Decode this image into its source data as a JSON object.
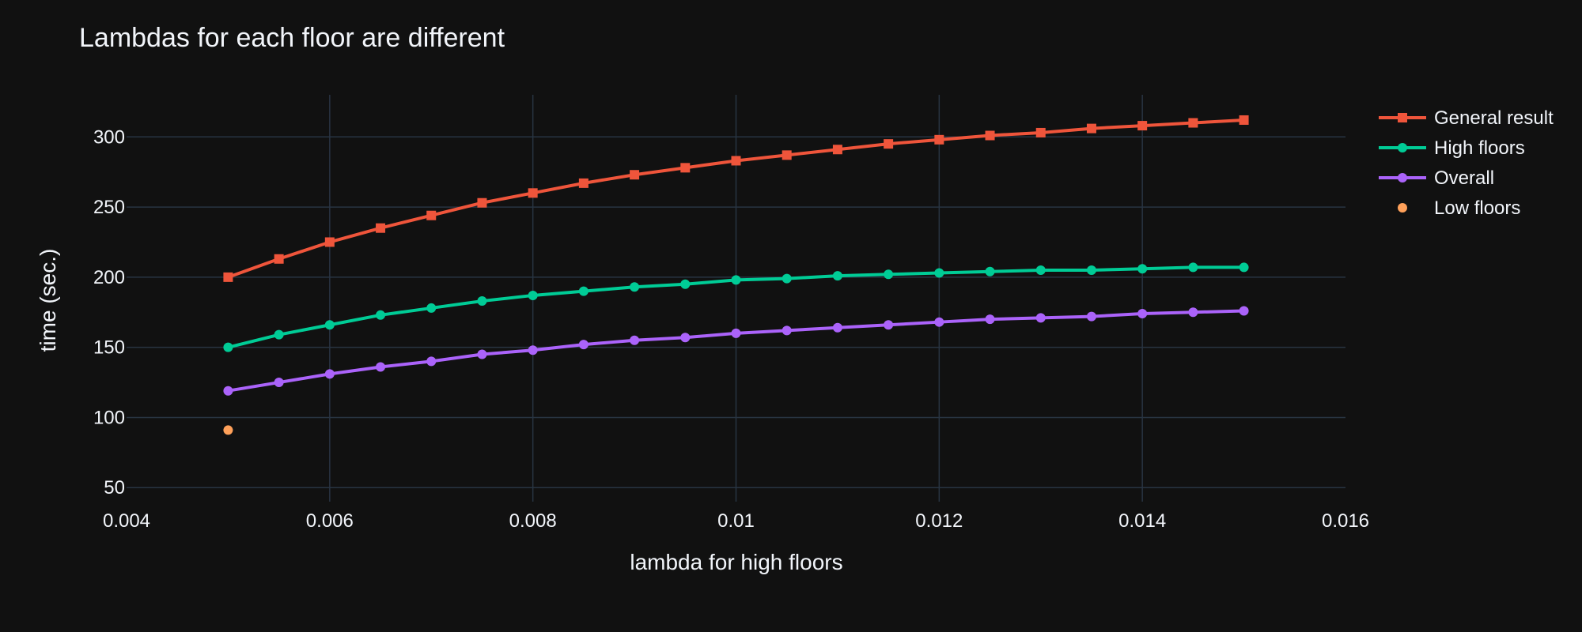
{
  "chart_data": {
    "type": "line",
    "title": "Lambdas for each floor are different",
    "xlabel": "lambda for high floors",
    "ylabel": "time (sec.)",
    "xlim": [
      0.004,
      0.016
    ],
    "ylim": [
      40,
      330
    ],
    "x_ticks": [
      0.004,
      0.006,
      0.008,
      0.01,
      0.012,
      0.014,
      0.016
    ],
    "x_tick_labels": [
      "0.004",
      "0.006",
      "0.008",
      "0.01",
      "0.012",
      "0.014",
      "0.016"
    ],
    "y_ticks": [
      50,
      100,
      150,
      200,
      250,
      300
    ],
    "y_tick_labels": [
      "50",
      "100",
      "150",
      "200",
      "250",
      "300"
    ],
    "grid": true,
    "legend_position": "top-right",
    "background": "#111111",
    "grid_color": "#283442",
    "series": [
      {
        "name": "General result",
        "color": "#EF553B",
        "marker": "square",
        "mode": "lines+markers",
        "x": [
          0.005,
          0.0055,
          0.006,
          0.0065,
          0.007,
          0.0075,
          0.008,
          0.0085,
          0.009,
          0.0095,
          0.01,
          0.0105,
          0.011,
          0.0115,
          0.012,
          0.0125,
          0.013,
          0.0135,
          0.014,
          0.0145,
          0.015
        ],
        "y": [
          200,
          213,
          225,
          235,
          244,
          253,
          260,
          267,
          273,
          278,
          283,
          287,
          291,
          295,
          298,
          301,
          303,
          306,
          308,
          310,
          312
        ]
      },
      {
        "name": "High floors",
        "color": "#00CC96",
        "marker": "circle",
        "mode": "lines+markers",
        "x": [
          0.005,
          0.0055,
          0.006,
          0.0065,
          0.007,
          0.0075,
          0.008,
          0.0085,
          0.009,
          0.0095,
          0.01,
          0.0105,
          0.011,
          0.0115,
          0.012,
          0.0125,
          0.013,
          0.0135,
          0.014,
          0.0145,
          0.015
        ],
        "y": [
          150,
          159,
          166,
          173,
          178,
          183,
          187,
          190,
          193,
          195,
          198,
          199,
          201,
          202,
          203,
          204,
          205,
          205,
          206,
          207,
          207
        ]
      },
      {
        "name": "Overall",
        "color": "#AB63FA",
        "marker": "circle",
        "mode": "lines+markers",
        "x": [
          0.005,
          0.0055,
          0.006,
          0.0065,
          0.007,
          0.0075,
          0.008,
          0.0085,
          0.009,
          0.0095,
          0.01,
          0.0105,
          0.011,
          0.0115,
          0.012,
          0.0125,
          0.013,
          0.0135,
          0.014,
          0.0145,
          0.015
        ],
        "y": [
          119,
          125,
          131,
          136,
          140,
          145,
          148,
          152,
          155,
          157,
          160,
          162,
          164,
          166,
          168,
          170,
          171,
          172,
          174,
          175,
          176
        ]
      },
      {
        "name": "Low floors",
        "color": "#FFA15A",
        "marker": "circle",
        "mode": "markers",
        "x": [
          0.005
        ],
        "y": [
          91
        ]
      }
    ]
  }
}
